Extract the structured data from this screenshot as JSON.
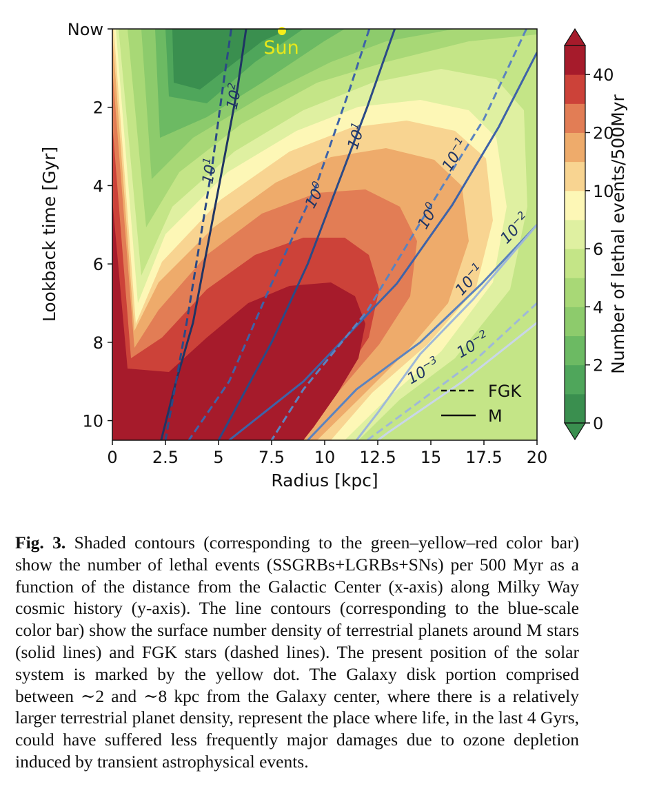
{
  "figure": {
    "title": "",
    "xlabel": "Radius [kpc]",
    "ylabel": "Lookback time [Gyr]",
    "colorbar_label": "Number of lethal events/500Myr",
    "x_ticks": [
      "0",
      "2.5",
      "5",
      "7.5",
      "10",
      "12.5",
      "15",
      "17.5",
      "20"
    ],
    "y_ticks": [
      "Now",
      "2",
      "4",
      "6",
      "8",
      "10"
    ],
    "colorbar_ticks": [
      "0",
      "2",
      "4",
      "6",
      "10",
      "20",
      "40"
    ],
    "sun_label": "Sun",
    "legend": [
      {
        "label": "FGK",
        "style": "dashed"
      },
      {
        "label": "M",
        "style": "solid"
      }
    ]
  },
  "chart_data": {
    "type": "heatmap",
    "xlabel": "Radius [kpc]",
    "ylabel": "Lookback time [Gyr]",
    "xlim": [
      0,
      20
    ],
    "ylim": [
      0,
      10.5
    ],
    "y_inverted": true,
    "colorbar": {
      "label": "Number of lethal events/500Myr",
      "levels": [
        0,
        1,
        2,
        3,
        4,
        5,
        6,
        8,
        10,
        15,
        20,
        30,
        40
      ],
      "colors": [
        "#3a8f4f",
        "#4fa65b",
        "#6cba63",
        "#8dcb6c",
        "#a8d876",
        "#c4e587",
        "#dff0a1",
        "#fdf7b6",
        "#f8d491",
        "#eeab6b",
        "#e27d55",
        "#cc4239",
        "#a61b2b"
      ],
      "extend": "both"
    },
    "sun": {
      "x": 8,
      "y": 0,
      "color": "#f5ee1a",
      "label": "Sun"
    },
    "contour_lines": [
      {
        "label": "10^2",
        "star": "M",
        "style": "solid",
        "points": [
          [
            6.3,
            0
          ],
          [
            5.9,
            1.5
          ],
          [
            5.2,
            3.5
          ],
          [
            4.5,
            5.5
          ],
          [
            3.8,
            7.5
          ],
          [
            3.0,
            9.0
          ],
          [
            2.3,
            10.5
          ]
        ]
      },
      {
        "label": "10^1",
        "star": "FGK",
        "style": "dashed",
        "points": [
          [
            5.6,
            0
          ],
          [
            5.2,
            1.5
          ],
          [
            4.7,
            3.5
          ],
          [
            4.1,
            5.5
          ],
          [
            3.5,
            7.5
          ],
          [
            3.0,
            9.0
          ],
          [
            2.5,
            10.5
          ]
        ]
      },
      {
        "label": "10^1",
        "star": "M",
        "style": "solid",
        "points": [
          [
            13.3,
            0
          ],
          [
            12.0,
            2.0
          ],
          [
            10.6,
            4.0
          ],
          [
            9.2,
            6.0
          ],
          [
            7.5,
            8.0
          ],
          [
            5.5,
            10.0
          ],
          [
            5.0,
            10.5
          ]
        ]
      },
      {
        "label": "10^0",
        "star": "FGK",
        "style": "dashed",
        "points": [
          [
            12.1,
            0
          ],
          [
            11.2,
            1.5
          ],
          [
            9.6,
            4.0
          ],
          [
            7.5,
            6.5
          ],
          [
            5.5,
            9.0
          ],
          [
            3.6,
            10.5
          ]
        ]
      },
      {
        "label": "10^0",
        "star": "M",
        "style": "solid",
        "points": [
          [
            20.0,
            0.6
          ],
          [
            18.2,
            2.5
          ],
          [
            16.0,
            4.5
          ],
          [
            13.4,
            6.5
          ],
          [
            9.0,
            9.0
          ],
          [
            5.5,
            10.5
          ]
        ]
      },
      {
        "label": "10^-1",
        "star": "FGK",
        "style": "dashed",
        "points": [
          [
            19.5,
            0
          ],
          [
            17.5,
            2.3
          ],
          [
            15.0,
            4.5
          ],
          [
            12.0,
            7.2
          ],
          [
            9.0,
            9.2
          ],
          [
            7.5,
            10.5
          ]
        ]
      },
      {
        "label": "10^-1",
        "star": "M",
        "style": "solid",
        "points": [
          [
            20.0,
            5.0
          ],
          [
            17.4,
            6.5
          ],
          [
            14.5,
            8.0
          ],
          [
            11.5,
            9.2
          ],
          [
            9.2,
            10.5
          ]
        ]
      },
      {
        "label": "10^-2",
        "star": "FGK",
        "style": "dashed",
        "points": [
          [
            20.0,
            7.0
          ],
          [
            17.0,
            8.5
          ],
          [
            14.0,
            9.7
          ],
          [
            12.0,
            10.5
          ]
        ]
      },
      {
        "label": "10^-3",
        "star": "M",
        "style": "solid",
        "points": [
          [
            20.0,
            7.5
          ],
          [
            16.5,
            9.0
          ],
          [
            13.0,
            10.3
          ],
          [
            12.5,
            10.5
          ]
        ]
      },
      {
        "label": "10^-2",
        "star": "M",
        "style": "solid",
        "points": [
          [
            20.0,
            5.0
          ],
          [
            17.0,
            6.9
          ],
          [
            14.5,
            8.3
          ],
          [
            12.5,
            9.8
          ],
          [
            11.5,
            10.5
          ]
        ]
      }
    ]
  },
  "caption": {
    "label": "Fig. 3.",
    "text": " Shaded contours (corresponding to the green–yellow–red color bar) show the number of lethal events (SSGRBs+LGRBs+SNs) per 500 Myr as a function of the distance from the Galactic Center (x-axis) along Milky Way cosmic history (y-axis). The line contours (corresponding to the blue-scale color bar) show the surface number density of terrestrial planets around M stars (solid lines) and FGK stars (dashed lines). The present position of the solar system is marked by the yellow dot. The Galaxy disk portion comprised between ∼2 and ∼8 kpc from the Galaxy center, where there is a relatively larger terrestrial planet density, represent the place where life, in the last 4 Gyrs, could have suffered less frequently major damages due to ozone depletion induced by transient astrophysical events."
  }
}
